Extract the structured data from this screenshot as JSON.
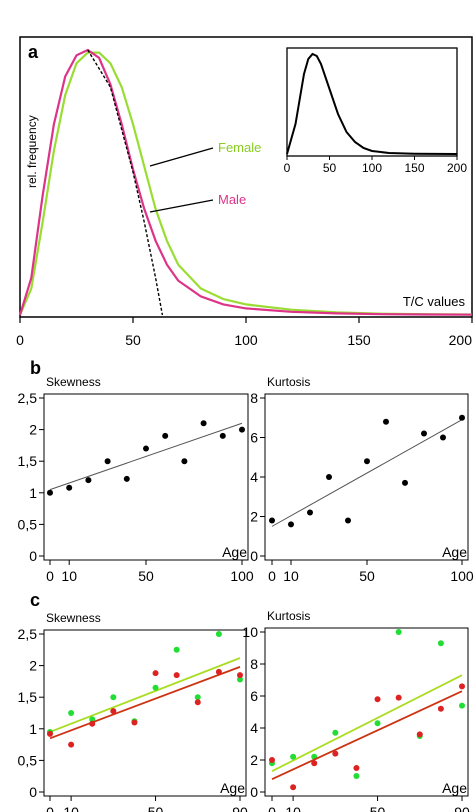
{
  "panel_labels": {
    "a": "a",
    "b": "b",
    "c": "c"
  },
  "chart_data": [
    {
      "id": "a",
      "type": "line",
      "panel": "a",
      "xlabel": "T/C values",
      "ylabel": "rel. frequency",
      "xlim": [
        0,
        200
      ],
      "xticks": [
        0,
        50,
        100,
        150,
        200
      ],
      "x": [
        0,
        5,
        10,
        15,
        20,
        25,
        30,
        35,
        40,
        45,
        50,
        55,
        60,
        65,
        70,
        80,
        90,
        100,
        120,
        140,
        160,
        180,
        200
      ],
      "series": [
        {
          "name": "Female",
          "color": "#99dd33",
          "values": [
            0.0,
            0.1,
            0.35,
            0.62,
            0.83,
            0.95,
            0.99,
            0.99,
            0.95,
            0.86,
            0.72,
            0.56,
            0.4,
            0.28,
            0.19,
            0.1,
            0.06,
            0.04,
            0.02,
            0.01,
            0.005,
            0.003,
            0.002
          ]
        },
        {
          "name": "Male",
          "color": "#dd3388",
          "values": [
            0.0,
            0.14,
            0.45,
            0.72,
            0.9,
            0.98,
            1.0,
            0.97,
            0.87,
            0.72,
            0.55,
            0.4,
            0.28,
            0.19,
            0.13,
            0.07,
            0.04,
            0.025,
            0.012,
            0.006,
            0.003,
            0.002,
            0.001
          ]
        },
        {
          "name": "",
          "color": "#000000",
          "dashed": true,
          "x": [
            30,
            40,
            50,
            55,
            60,
            63
          ],
          "values": [
            1.0,
            0.86,
            0.54,
            0.35,
            0.14,
            0.0
          ]
        }
      ],
      "inset": {
        "xlim": [
          0,
          200
        ],
        "xticks": [
          0,
          50,
          100,
          150,
          200
        ],
        "x": [
          0,
          10,
          20,
          25,
          30,
          35,
          40,
          50,
          60,
          70,
          80,
          90,
          100,
          120,
          150,
          200
        ],
        "values": [
          0.0,
          0.3,
          0.8,
          0.95,
          1.0,
          0.98,
          0.9,
          0.65,
          0.4,
          0.22,
          0.12,
          0.06,
          0.03,
          0.01,
          0.003,
          0.0
        ]
      }
    },
    {
      "id": "b-skew",
      "type": "scatter",
      "panel": "b",
      "title": "Skewness",
      "xlabel": "Age",
      "xlim": [
        0,
        100
      ],
      "ylim": [
        0,
        2.5
      ],
      "xticks": [
        0,
        10,
        50,
        100
      ],
      "xtick_labels": [
        "0",
        "10",
        "50",
        "100"
      ],
      "yticks": [
        0,
        0.5,
        1,
        1.5,
        2,
        2.5
      ],
      "ytick_labels": [
        "0",
        "0,5",
        "1",
        "1,5",
        "2",
        "2,5"
      ],
      "series": [
        {
          "color": "#000000",
          "x": [
            0,
            10,
            20,
            30,
            40,
            50,
            60,
            70,
            80,
            90,
            100
          ],
          "values": [
            1.0,
            1.08,
            1.2,
            1.5,
            1.22,
            1.7,
            1.9,
            1.5,
            2.1,
            1.9,
            2.0
          ],
          "trend": [
            1.05,
            2.1
          ]
        }
      ]
    },
    {
      "id": "b-kurt",
      "type": "scatter",
      "panel": "b",
      "title": "Kurtosis",
      "xlabel": "Age",
      "xlim": [
        0,
        100
      ],
      "ylim": [
        0,
        8
      ],
      "xticks": [
        0,
        10,
        50,
        100
      ],
      "xtick_labels": [
        "0",
        "10",
        "50",
        "100"
      ],
      "yticks": [
        0,
        2,
        4,
        6,
        8
      ],
      "ytick_labels": [
        "0",
        "2",
        "4",
        "6",
        "8"
      ],
      "series": [
        {
          "color": "#000000",
          "x": [
            0,
            10,
            20,
            30,
            40,
            50,
            60,
            70,
            80,
            90,
            100
          ],
          "values": [
            1.8,
            1.6,
            2.2,
            4.0,
            1.8,
            4.8,
            6.8,
            3.7,
            6.2,
            6.0,
            7.0
          ],
          "trend": [
            1.5,
            6.9
          ]
        }
      ]
    },
    {
      "id": "c-skew",
      "type": "scatter",
      "panel": "c",
      "title": "Skewness",
      "xlabel": "Age",
      "xlim": [
        0,
        90
      ],
      "ylim": [
        0,
        2.5
      ],
      "xticks": [
        0,
        10,
        50,
        90
      ],
      "xtick_labels": [
        "0",
        "10",
        "50",
        "90"
      ],
      "yticks": [
        0,
        0.5,
        1,
        1.5,
        2,
        2.5
      ],
      "ytick_labels": [
        "0",
        "0,5",
        "1",
        "1,5",
        "2",
        "2,5"
      ],
      "series": [
        {
          "color": "#22dd33",
          "x": [
            0,
            10,
            20,
            30,
            40,
            50,
            60,
            70,
            80,
            90
          ],
          "values": [
            0.95,
            1.25,
            1.15,
            1.5,
            1.12,
            1.65,
            2.25,
            1.5,
            2.5,
            1.78
          ],
          "trend": [
            0.95,
            2.12
          ]
        },
        {
          "color": "#dd2222",
          "x": [
            0,
            10,
            20,
            30,
            40,
            50,
            60,
            70,
            80,
            90
          ],
          "values": [
            0.92,
            0.75,
            1.08,
            1.28,
            1.1,
            1.88,
            1.85,
            1.42,
            1.9,
            1.85
          ],
          "trend": [
            0.85,
            1.98
          ]
        }
      ]
    },
    {
      "id": "c-kurt",
      "type": "scatter",
      "panel": "c",
      "title": "Kurtosis",
      "xlabel": "Age",
      "xlim": [
        0,
        90
      ],
      "ylim": [
        0,
        10
      ],
      "xticks": [
        0,
        10,
        50,
        90
      ],
      "xtick_labels": [
        "0",
        "10",
        "50",
        "90"
      ],
      "yticks": [
        0,
        2,
        4,
        6,
        8,
        10
      ],
      "ytick_labels": [
        "0",
        "2",
        "4",
        "6",
        "8",
        "10"
      ],
      "series": [
        {
          "color": "#22dd33",
          "x": [
            0,
            10,
            20,
            30,
            40,
            50,
            60,
            70,
            80,
            90
          ],
          "values": [
            1.8,
            2.2,
            2.2,
            3.7,
            1.0,
            4.3,
            10.0,
            3.5,
            9.3,
            5.4
          ],
          "trend": [
            1.3,
            7.3
          ]
        },
        {
          "color": "#dd2222",
          "x": [
            0,
            10,
            20,
            30,
            40,
            50,
            60,
            70,
            80,
            90
          ],
          "values": [
            2.0,
            0.3,
            1.8,
            2.4,
            1.5,
            5.8,
            5.9,
            3.6,
            5.2,
            6.6
          ],
          "trend": [
            0.8,
            6.3
          ]
        }
      ]
    }
  ]
}
